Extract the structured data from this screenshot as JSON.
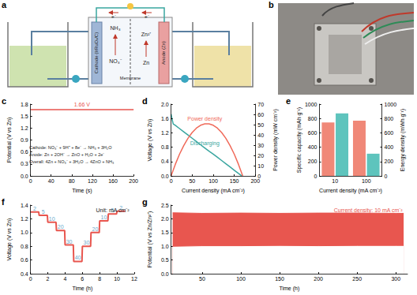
{
  "diagram": {
    "title": "a",
    "labels": {
      "cathode": "Cathode (IrRuOₓ/C)",
      "anode": "Anode (Zn)",
      "membrane": "Membrane",
      "nh3": "NH₃",
      "no3": "NO₃⁻",
      "zn2": "Zn²⁺",
      "zn": "Zn",
      "e_left": "e⁻",
      "e_right": "e⁻"
    }
  },
  "photo": {
    "title": "b"
  },
  "chart_data": [
    {
      "title": "c",
      "type": "line",
      "x_label": "Time (s)",
      "y_label": "Potential (V vs Zn)",
      "xlim": [
        0,
        200
      ],
      "xticks": [
        0,
        40,
        80,
        120,
        160,
        200
      ],
      "ylim": [
        0,
        1.8
      ],
      "yticks": [
        {
          "value": 0,
          "label": "0.0"
        },
        0.3,
        0.6,
        0.9,
        1.2,
        1.5,
        1.8
      ],
      "series": [
        {
          "name": "1.66 V",
          "color": "#e8564f",
          "x": [
            0,
            20,
            40,
            60,
            80,
            100,
            120,
            140,
            160,
            180,
            200
          ],
          "values": [
            1.66,
            1.66,
            1.66,
            1.66,
            1.66,
            1.66,
            1.66,
            1.66,
            1.66,
            1.66,
            1.66
          ]
        }
      ],
      "annotations": [
        "Cathode: NO₃⁻ + 9H⁺ + 8e⁻ → NH₃ + 3H₂O",
        "Anode: Zn + 2OH⁻ → ZnO + H₂O + 2e⁻",
        "Overall: 4Zn + NO₃⁻ + 3H₂O → 4ZnO + NH₃"
      ]
    },
    {
      "title": "d",
      "type": "line",
      "x_label": "Current density (mA cm⁻²)",
      "y_label": "Voltage (V vs Zn)",
      "y2_label": "Power density (mW cm⁻²)",
      "xlim": [
        0,
        200
      ],
      "xticks": [
        0,
        50,
        100,
        150,
        200
      ],
      "ylim": [
        0,
        2
      ],
      "yticks": [
        {
          "value": 0,
          "label": "0.0"
        },
        0.4,
        0.8,
        1.2,
        1.6,
        {
          "value": 2,
          "label": "2.0"
        }
      ],
      "y2lim": [
        0,
        70
      ],
      "y2ticks": [
        0,
        10,
        20,
        30,
        40,
        50,
        60,
        70
      ],
      "series": [
        {
          "name": "Discharging",
          "color": "#3aa6a0",
          "x": [
            0,
            2,
            5,
            10,
            20,
            30,
            40,
            50,
            60,
            70,
            80,
            90,
            100,
            110,
            120,
            130,
            140,
            150,
            160,
            168
          ],
          "values": [
            1.72,
            1.6,
            1.45,
            1.41,
            1.32,
            1.23,
            1.14,
            1.05,
            0.96,
            0.87,
            0.78,
            0.69,
            0.61,
            0.52,
            0.43,
            0.34,
            0.25,
            0.16,
            0.07,
            0
          ]
        },
        {
          "name": "Power density",
          "color": "#f06a5a",
          "axis": "y2",
          "x": [
            0,
            10,
            20,
            30,
            40,
            50,
            60,
            70,
            80,
            90,
            100,
            110,
            120,
            130,
            140,
            150,
            160,
            170
          ],
          "values": [
            0,
            11.3,
            21.2,
            29.6,
            36.7,
            42.3,
            46.6,
            49.4,
            50.8,
            50.8,
            49.4,
            46.6,
            42.3,
            36.7,
            29.6,
            21.2,
            11.3,
            0
          ]
        }
      ]
    },
    {
      "title": "e",
      "type": "bar",
      "x_label": "Current density (mA cm⁻²)",
      "y_label": "Specific capacity (mAh g⁻¹)",
      "y2_label": "Energy density (mWh g⁻¹)",
      "categories": [
        "10",
        "100"
      ],
      "ylim": [
        0,
        1000
      ],
      "yticks": [
        0,
        200,
        400,
        600,
        800,
        1000
      ],
      "y2lim": [
        0,
        1000
      ],
      "y2ticks": [
        0,
        200,
        400,
        600,
        800,
        1000
      ],
      "series": [
        {
          "color": "#f08878",
          "values": [
            745,
            770
          ]
        },
        {
          "color": "#5ec4bd",
          "axis": "y2",
          "values": [
            870,
            310
          ]
        }
      ]
    },
    {
      "title": "f",
      "type": "line",
      "x_label": "Time (h)",
      "y_label": "Voltage (V vs Zn)",
      "xlim": [
        0,
        12
      ],
      "xticks": [
        0,
        2,
        4,
        6,
        8,
        10,
        12
      ],
      "ylim": [
        0.4,
        1.4
      ],
      "yticks": [
        0.4,
        0.6,
        0.8,
        {
          "value": 1,
          "label": "1.0"
        },
        1.2,
        1.4
      ],
      "color": "#e8564f",
      "x": [
        0,
        1,
        2,
        3,
        4,
        5,
        6,
        7,
        8,
        9,
        10
      ],
      "x_end": [
        0.95,
        1.95,
        2.95,
        3.95,
        4.95,
        5.95,
        6.95,
        7.95,
        8.95,
        9.95,
        10.95
      ],
      "values": [
        1.3,
        1.25,
        1.15,
        1.03,
        0.82,
        0.58,
        0.8,
        1.0,
        1.17,
        1.27,
        1.31
      ],
      "current_density": [
        2,
        5,
        10,
        20,
        30,
        40,
        30,
        20,
        10,
        5,
        2
      ],
      "annotations": [
        "Unit: mA cm⁻²"
      ]
    },
    {
      "title": "g",
      "type": "band",
      "x_label": "Time (h)",
      "y_label": "Potential (V vs Zn/Zn²⁺)",
      "xlim": [
        10,
        315
      ],
      "xticks": [
        50,
        100,
        150,
        200,
        250,
        300
      ],
      "ylim": [
        0,
        2.5
      ],
      "yticks": [
        {
          "value": 0,
          "label": "0.0"
        },
        0.5,
        {
          "value": 1,
          "label": "1.0"
        },
        1.5,
        {
          "value": 2,
          "label": "2.0"
        },
        2.5
      ],
      "series": [
        {
          "color": "#e8564f",
          "x": [
            12,
            50,
            100,
            150,
            200,
            250,
            300,
            310
          ],
          "values": [
            2.22,
            2.2,
            2.21,
            2.2,
            2.21,
            2.21,
            2.2,
            2.2
          ]
        },
        {
          "color": "#e8564f",
          "x": [
            12,
            50,
            100,
            150,
            200,
            250,
            300,
            310
          ],
          "values": [
            1.0,
            1.02,
            1.02,
            1.03,
            1.02,
            1.03,
            1.03,
            1.03
          ]
        }
      ],
      "annotations": [
        "Current density: 10 mA cm⁻²"
      ]
    }
  ]
}
